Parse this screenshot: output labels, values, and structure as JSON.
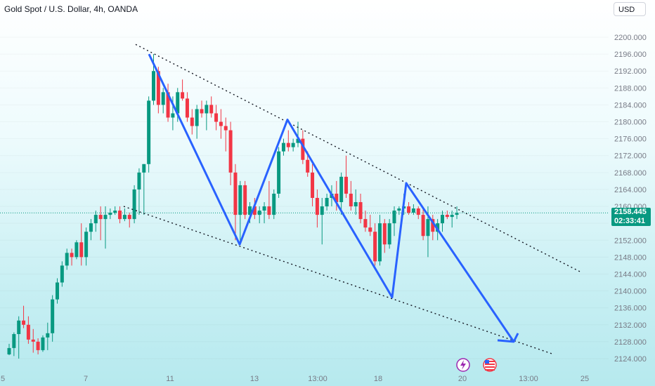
{
  "header": {
    "title": "Gold Spot / U.S. Dollar, 4h, OANDA",
    "currency_button": "USD"
  },
  "current_price": {
    "price": "2158.445",
    "countdown": "02:33:41"
  },
  "colors": {
    "up": "#089981",
    "down": "#f23645",
    "pattern": "#2962ff",
    "axis_text": "#787b86"
  },
  "icons": [
    "lightning-event-icon",
    "us-flag-event-icon"
  ],
  "chart_data": {
    "type": "candlestick",
    "symbol": "XAUUSD",
    "timeframe": "4h",
    "y_ticks": [
      2124,
      2128,
      2132,
      2136,
      2140,
      2144,
      2148,
      2152,
      2156,
      2160,
      2164,
      2168,
      2172,
      2176,
      2180,
      2184,
      2188,
      2192,
      2196,
      2200
    ],
    "ylim": [
      2122.5,
      2201.5
    ],
    "x_labels": [
      "5",
      "7",
      "11",
      "13",
      "13:00",
      "18",
      "20",
      "13:00",
      "25"
    ],
    "current_price": 2158.445,
    "candles": [
      [
        2125.0,
        2127.5,
        2124.8,
        2126.5
      ],
      [
        2126.5,
        2130.2,
        2124.6,
        2129.8
      ],
      [
        2129.8,
        2134.0,
        2124.0,
        2133.0
      ],
      [
        2133.0,
        2136.5,
        2131.2,
        2132.0
      ],
      [
        2132.0,
        2134.0,
        2127.5,
        2128.5
      ],
      [
        2128.5,
        2131.0,
        2125.4,
        2128.0
      ],
      [
        2128.0,
        2128.8,
        2125.0,
        2126.0
      ],
      [
        2126.0,
        2129.5,
        2125.6,
        2129.0
      ],
      [
        2129.0,
        2132.5,
        2126.0,
        2130.0
      ],
      [
        2130.0,
        2139.0,
        2128.0,
        2138.0
      ],
      [
        2138.0,
        2143.0,
        2137.0,
        2142.0
      ],
      [
        2142.0,
        2147.0,
        2141.0,
        2146.0
      ],
      [
        2146.0,
        2150.0,
        2145.0,
        2149.0
      ],
      [
        2149.0,
        2150.0,
        2146.0,
        2148.0
      ],
      [
        2148.0,
        2152.0,
        2147.5,
        2151.5
      ],
      [
        2151.5,
        2156.0,
        2146.0,
        2148.0
      ],
      [
        2148.0,
        2155.0,
        2146.0,
        2154.0
      ],
      [
        2154.0,
        2157.0,
        2152.0,
        2156.0
      ],
      [
        2156.0,
        2159.0,
        2154.0,
        2158.0
      ],
      [
        2158.0,
        2160.0,
        2152.0,
        2157.0
      ],
      [
        2157.0,
        2160.0,
        2150.0,
        2158.0
      ],
      [
        2158.0,
        2159.5,
        2157.0,
        2158.5
      ],
      [
        2158.5,
        2160.0,
        2158.0,
        2159.0
      ],
      [
        2159.0,
        2160.0,
        2156.0,
        2157.0
      ],
      [
        2157.0,
        2159.5,
        2156.5,
        2158.0
      ],
      [
        2158.0,
        2158.5,
        2155.0,
        2157.0
      ],
      [
        2157.0,
        2165.0,
        2156.0,
        2164.0
      ],
      [
        2164.0,
        2169.0,
        2158.0,
        2168.0
      ],
      [
        2168.0,
        2170.0,
        2158.0,
        2170.0
      ],
      [
        2170.0,
        2186.0,
        2168.0,
        2185.0
      ],
      [
        2185.0,
        2196.0,
        2184.0,
        2192.0
      ],
      [
        2192.0,
        2193.0,
        2182.0,
        2184.0
      ],
      [
        2184.0,
        2188.0,
        2182.0,
        2187.0
      ],
      [
        2187.0,
        2189.0,
        2180.0,
        2181.0
      ],
      [
        2181.0,
        2186.0,
        2178.0,
        2182.0
      ],
      [
        2182.0,
        2188.0,
        2180.0,
        2187.0
      ],
      [
        2187.0,
        2190.0,
        2185.0,
        2185.5
      ],
      [
        2185.5,
        2187.0,
        2180.0,
        2181.0
      ],
      [
        2181.0,
        2183.0,
        2177.0,
        2179.0
      ],
      [
        2179.0,
        2184.0,
        2176.0,
        2183.0
      ],
      [
        2183.0,
        2185.0,
        2181.0,
        2182.0
      ],
      [
        2182.0,
        2185.0,
        2178.0,
        2184.0
      ],
      [
        2184.0,
        2186.0,
        2181.0,
        2182.0
      ],
      [
        2182.0,
        2184.0,
        2178.0,
        2180.0
      ],
      [
        2180.0,
        2183.0,
        2176.0,
        2179.0
      ],
      [
        2179.0,
        2181.0,
        2173.0,
        2178.0
      ],
      [
        2178.0,
        2180.0,
        2165.0,
        2168.0
      ],
      [
        2168.0,
        2170.0,
        2152.0,
        2158.0
      ],
      [
        2158.0,
        2166.0,
        2151.0,
        2165.0
      ],
      [
        2165.0,
        2166.0,
        2157.0,
        2158.0
      ],
      [
        2158.0,
        2161.0,
        2156.0,
        2160.0
      ],
      [
        2160.0,
        2162.0,
        2157.0,
        2158.0
      ],
      [
        2158.0,
        2160.0,
        2156.0,
        2159.0
      ],
      [
        2159.0,
        2161.0,
        2156.0,
        2160.0
      ],
      [
        2160.0,
        2166.0,
        2157.0,
        2158.0
      ],
      [
        2158.0,
        2164.0,
        2157.0,
        2163.0
      ],
      [
        2163.0,
        2174.0,
        2162.0,
        2173.0
      ],
      [
        2173.0,
        2176.0,
        2172.0,
        2175.0
      ],
      [
        2175.0,
        2178.0,
        2173.0,
        2174.0
      ],
      [
        2174.0,
        2176.0,
        2173.0,
        2175.0
      ],
      [
        2175.0,
        2180.0,
        2174.0,
        2176.0
      ],
      [
        2176.0,
        2178.0,
        2170.0,
        2171.0
      ],
      [
        2171.0,
        2173.0,
        2167.0,
        2168.0
      ],
      [
        2168.0,
        2170.0,
        2160.0,
        2162.0
      ],
      [
        2162.0,
        2164.0,
        2155.0,
        2158.0
      ],
      [
        2158.0,
        2162.0,
        2151.0,
        2160.0
      ],
      [
        2160.0,
        2163.0,
        2159.0,
        2162.0
      ],
      [
        2162.0,
        2165.0,
        2160.0,
        2163.0
      ],
      [
        2163.0,
        2166.0,
        2159.0,
        2161.0
      ],
      [
        2161.0,
        2168.0,
        2158.0,
        2167.0
      ],
      [
        2167.0,
        2172.0,
        2162.0,
        2163.0
      ],
      [
        2163.0,
        2166.0,
        2159.0,
        2160.0
      ],
      [
        2160.0,
        2164.0,
        2158.0,
        2161.0
      ],
      [
        2161.0,
        2163.0,
        2156.0,
        2157.0
      ],
      [
        2157.0,
        2159.0,
        2154.0,
        2155.0
      ],
      [
        2155.0,
        2158.0,
        2153.0,
        2154.0
      ],
      [
        2154.0,
        2156.0,
        2146.0,
        2147.0
      ],
      [
        2147.0,
        2158.0,
        2146.0,
        2156.0
      ],
      [
        2156.0,
        2157.0,
        2149.0,
        2151.0
      ],
      [
        2151.0,
        2157.0,
        2150.0,
        2156.0
      ],
      [
        2156.0,
        2160.0,
        2153.0,
        2159.0
      ],
      [
        2159.0,
        2160.0,
        2158.0,
        2159.5
      ],
      [
        2159.5,
        2163.0,
        2158.0,
        2160.0
      ],
      [
        2160.0,
        2161.0,
        2158.0,
        2158.5
      ],
      [
        2158.5,
        2160.5,
        2158.0,
        2159.5
      ],
      [
        2159.5,
        2160.0,
        2157.0,
        2158.0
      ],
      [
        2158.0,
        2159.5,
        2152.0,
        2153.0
      ],
      [
        2153.0,
        2160.0,
        2148.0,
        2157.0
      ],
      [
        2157.0,
        2158.0,
        2152.0,
        2154.0
      ],
      [
        2154.0,
        2157.0,
        2152.0,
        2156.0
      ],
      [
        2156.0,
        2159.0,
        2154.0,
        2158.0
      ],
      [
        2158.0,
        2159.0,
        2157.0,
        2157.5
      ],
      [
        2157.5,
        2159.0,
        2155.0,
        2158.0
      ],
      [
        2158.0,
        2160.0,
        2157.0,
        2158.445
      ]
    ],
    "pattern_points": [
      [
        2196.0
      ],
      [
        2151.0
      ],
      [
        2180.5
      ],
      [
        2138.5
      ],
      [
        2165.5
      ],
      [
        2128.0
      ]
    ],
    "upper_trendline": [
      2198.3,
      2144.5
    ],
    "lower_trendline": [
      2160.0,
      2125.0
    ]
  }
}
